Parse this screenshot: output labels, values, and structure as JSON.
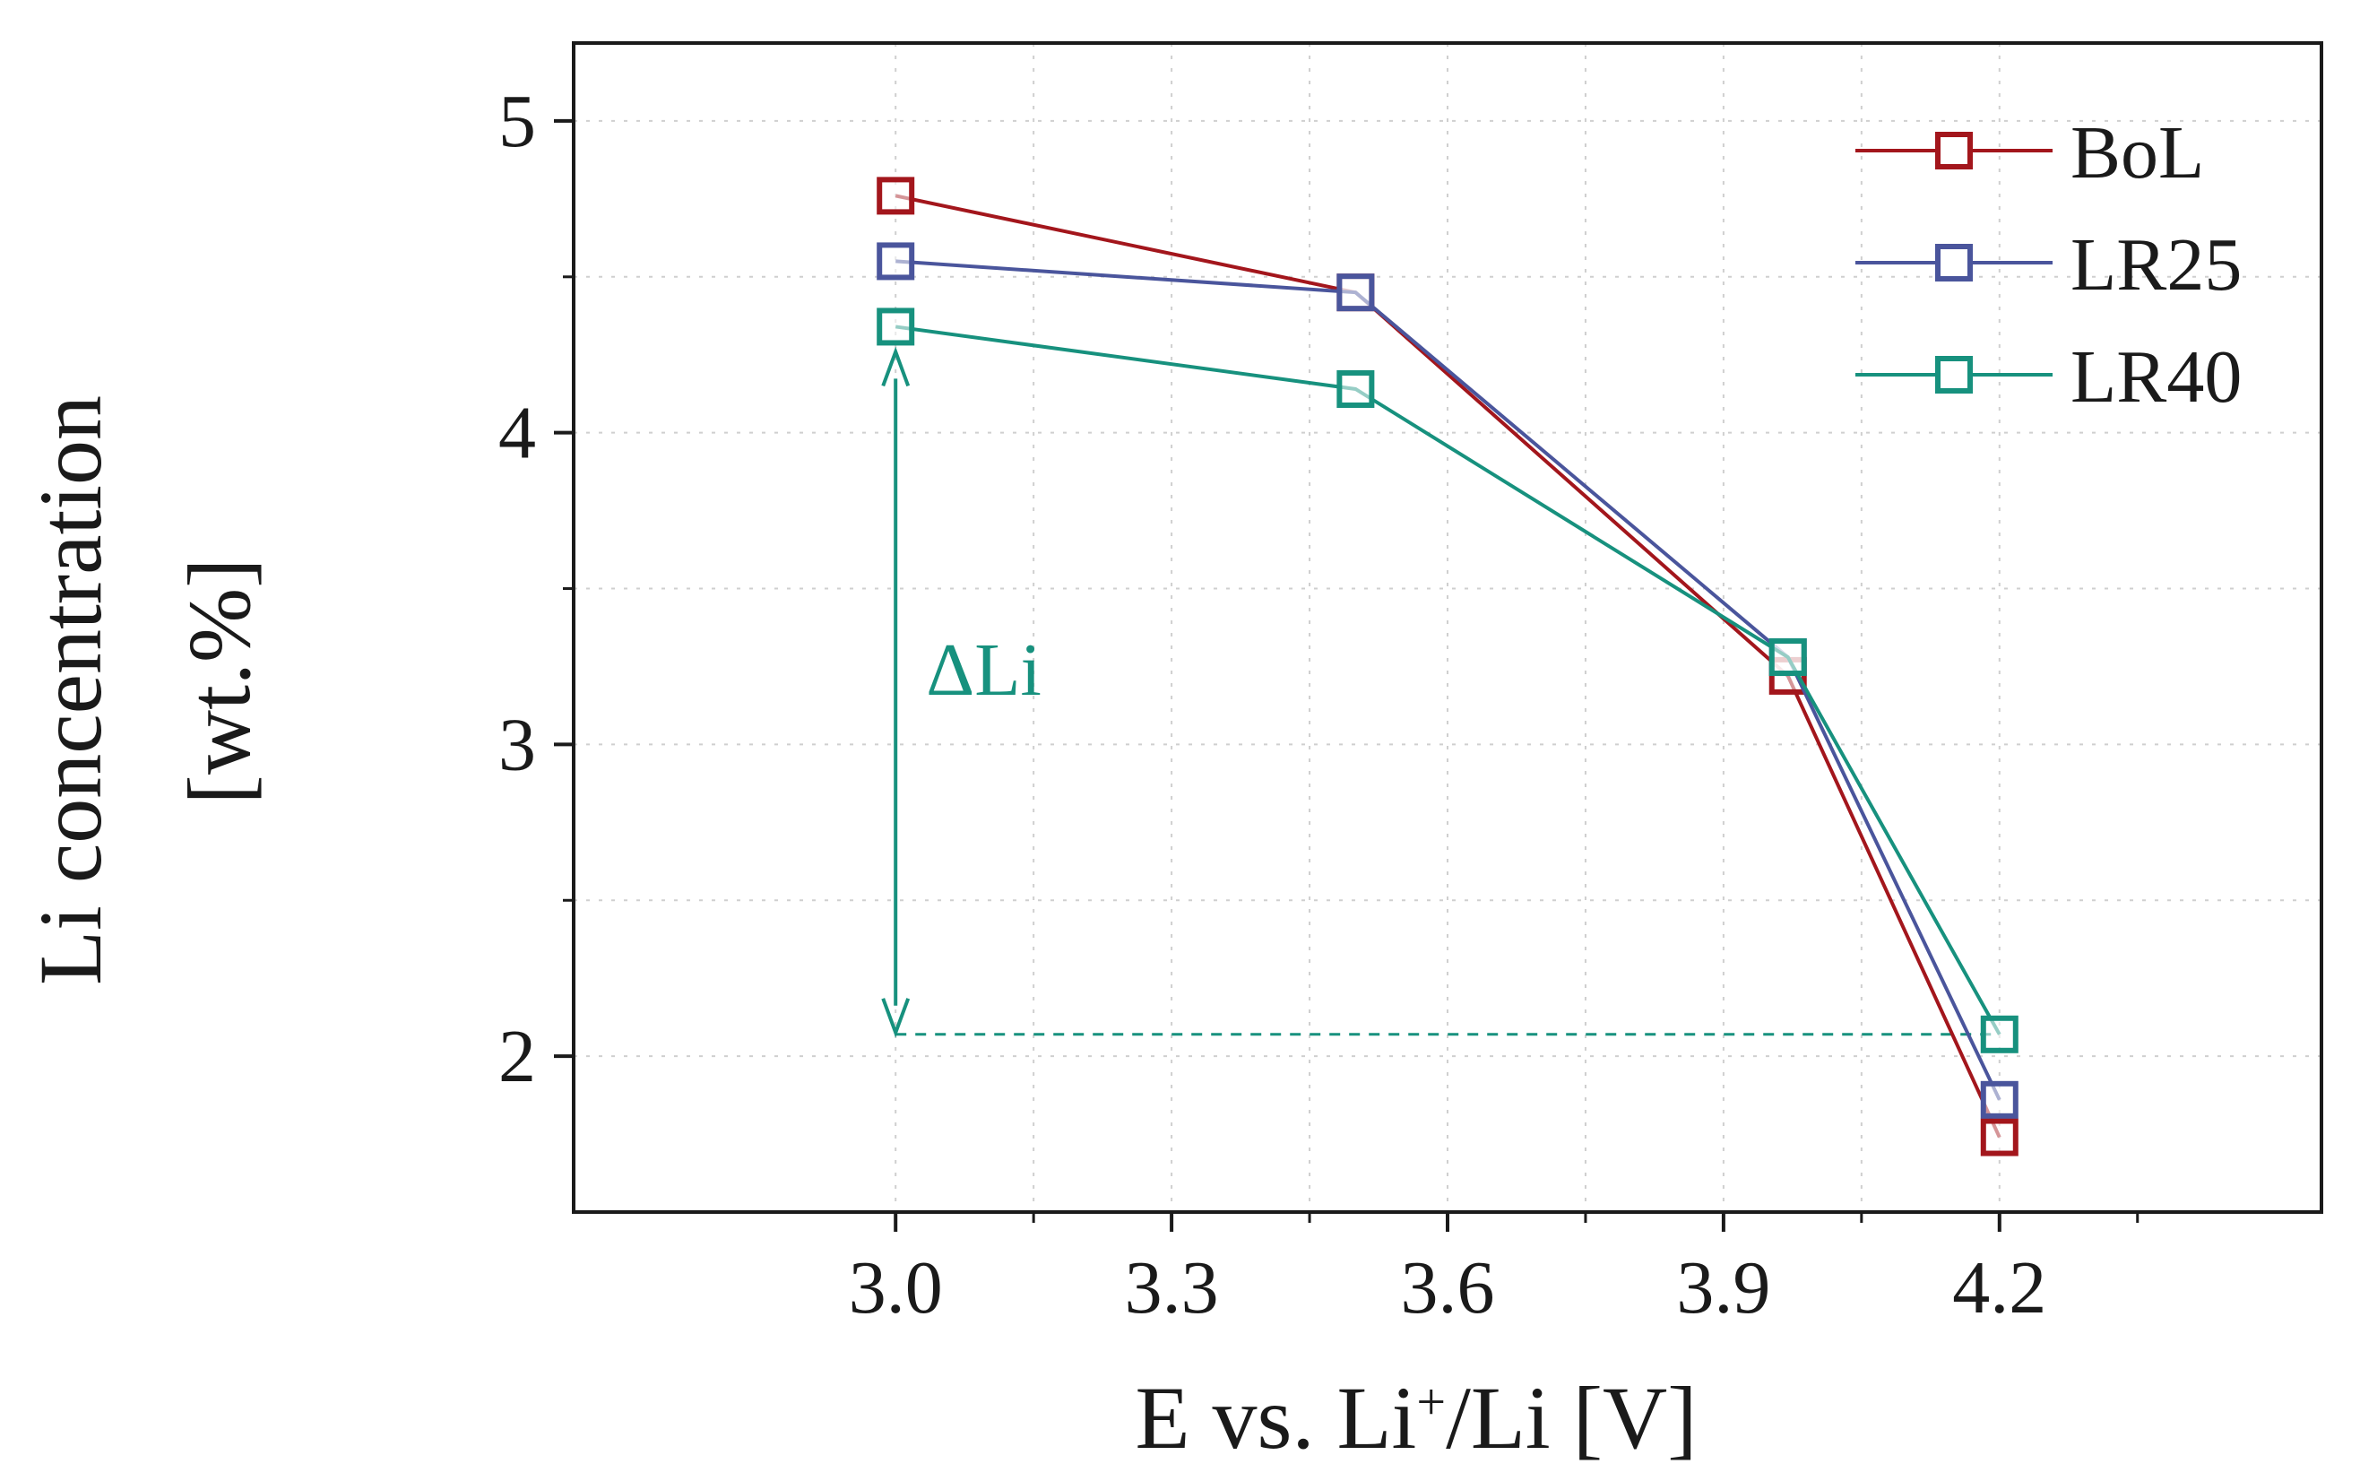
{
  "chart_data": {
    "type": "line",
    "title": "",
    "xlabel": {
      "prefix": "E vs. Li",
      "superscript": "+",
      "suffix": "/Li [V]"
    },
    "ylabel_line1": "Li concentration",
    "ylabel_line2": "[wt.%]",
    "xlim": [
      2.65,
      4.55
    ],
    "ylim": [
      1.5,
      5.25
    ],
    "xticks": [
      3.0,
      3.3,
      3.6,
      3.9,
      4.2
    ],
    "xtick_labels": [
      "3.0",
      "3.3",
      "3.6",
      "3.9",
      "4.2"
    ],
    "yticks": [
      2,
      3,
      4,
      5
    ],
    "ytick_labels": [
      "2",
      "3",
      "4",
      "5"
    ],
    "grid": true,
    "legend_position": "top-right",
    "x": [
      3.0,
      3.5,
      3.97,
      4.2
    ],
    "series": [
      {
        "name": "BoL",
        "color": "#a3161c",
        "values": [
          4.76,
          4.45,
          3.22,
          1.74
        ]
      },
      {
        "name": "LR25",
        "color": "#4a559c",
        "values": [
          4.55,
          4.45,
          3.28,
          1.86
        ]
      },
      {
        "name": "LR40",
        "color": "#17917e",
        "values": [
          4.34,
          4.14,
          3.28,
          2.07
        ]
      }
    ],
    "annotations": [
      {
        "label": "ΔLi",
        "color": "#17917e",
        "x": 3.0,
        "y_from": 4.34,
        "y_to": 2.07,
        "reference_line_y": 2.07,
        "reference_line_x_end": 4.2
      }
    ]
  }
}
